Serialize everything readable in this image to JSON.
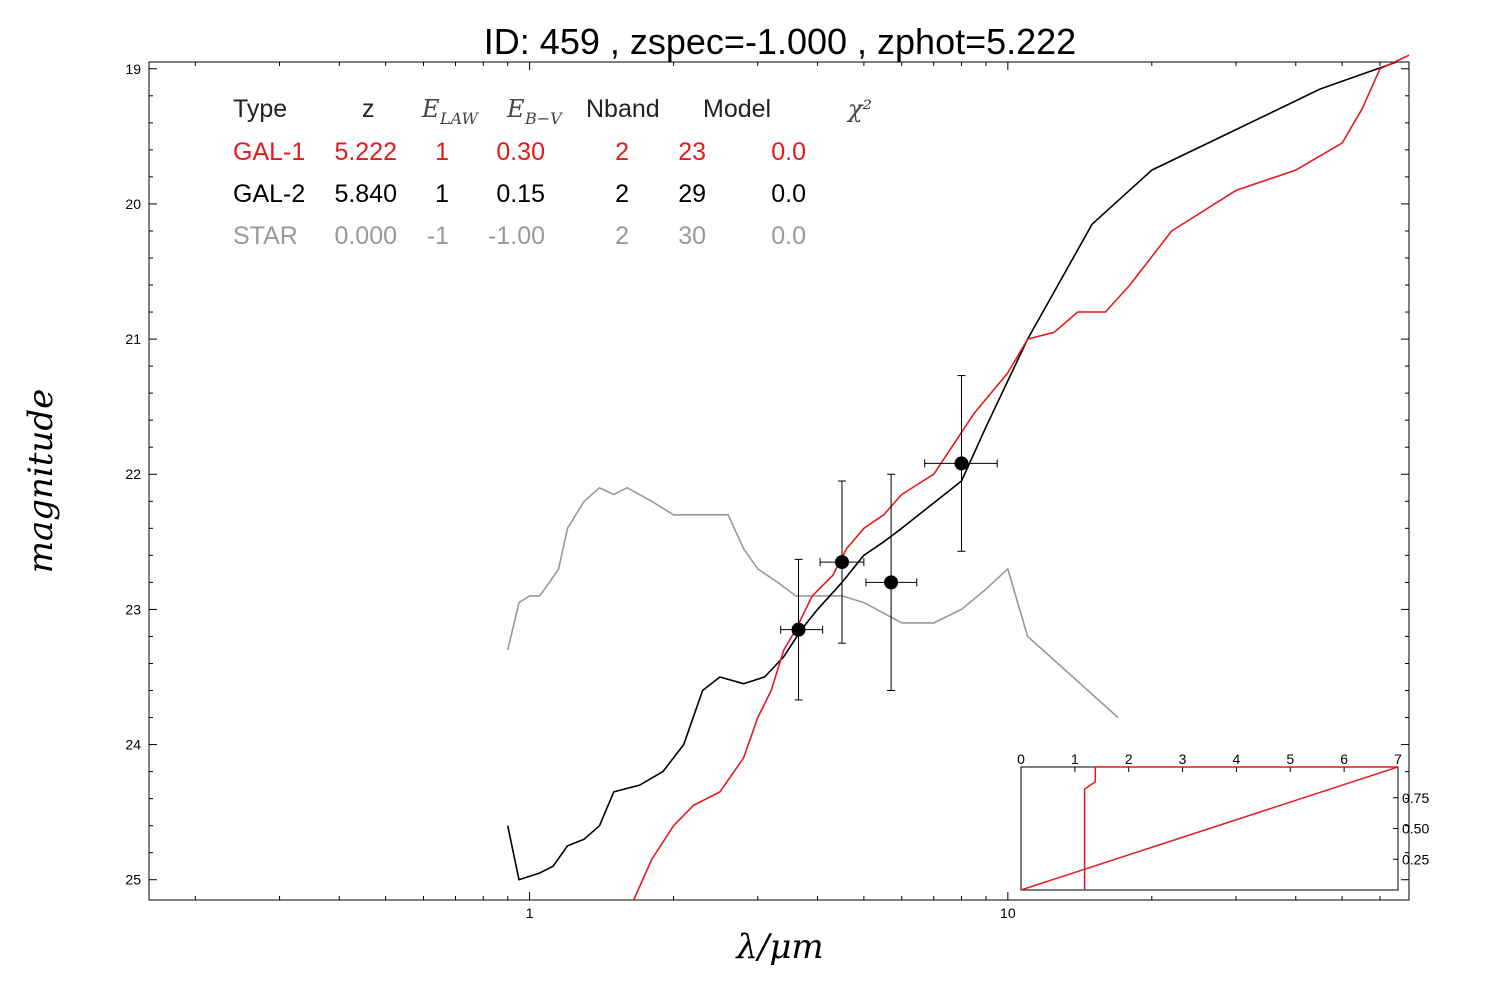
{
  "title": "ID:  459   , zspec=-1.000 , zphot=5.222",
  "colors": {
    "gal1": "#e41a1c",
    "gal2": "#000000",
    "star": "#999999",
    "axis": "#000000"
  },
  "table": {
    "headers": {
      "type": "Type",
      "z": "z",
      "elaw": "E",
      "elaw_sub": "LAW",
      "ebv": "E",
      "ebv_sub": "B−V",
      "nband": "Nband",
      "model": "Model",
      "chi2": "χ²"
    },
    "rows": [
      {
        "type": "GAL-1",
        "z": "5.222",
        "elaw": "1",
        "ebv": "0.30",
        "nband": "2",
        "model": "23",
        "chi2": "0.0",
        "color": "#e41a1c"
      },
      {
        "type": "GAL-2",
        "z": "5.840",
        "elaw": "1",
        "ebv": "0.15",
        "nband": "2",
        "model": "29",
        "chi2": "0.0",
        "color": "#000000"
      },
      {
        "type": "STAR",
        "z": "0.000",
        "elaw": "-1",
        "ebv": "-1.00",
        "nband": "2",
        "model": "30",
        "chi2": "0.0",
        "color": "#999999"
      }
    ]
  },
  "chart_data": {
    "type": "line",
    "title": "ID:  459   , zspec=-1.000 , zphot=5.222",
    "xlabel": "λ/μm",
    "ylabel": "magnitude",
    "xscale": "log",
    "xlim": [
      0.16,
      69
    ],
    "ylim": [
      25.15,
      18.95
    ],
    "x_ticks": [
      1,
      10
    ],
    "y_ticks": [
      19,
      20,
      21,
      22,
      23,
      24,
      25
    ],
    "grid": false,
    "legend": "table top-left",
    "series": [
      {
        "name": "GAL-1",
        "color": "#e41a1c",
        "points": [
          [
            1.65,
            25.15
          ],
          [
            1.8,
            24.85
          ],
          [
            2.0,
            24.6
          ],
          [
            2.2,
            24.45
          ],
          [
            2.5,
            24.35
          ],
          [
            2.8,
            24.1
          ],
          [
            3.0,
            23.8
          ],
          [
            3.2,
            23.6
          ],
          [
            3.4,
            23.3
          ],
          [
            3.6,
            23.15
          ],
          [
            3.9,
            22.9
          ],
          [
            4.3,
            22.75
          ],
          [
            4.6,
            22.55
          ],
          [
            5.0,
            22.4
          ],
          [
            5.5,
            22.3
          ],
          [
            6.0,
            22.15
          ],
          [
            7.0,
            22.0
          ],
          [
            8.5,
            21.55
          ],
          [
            10.0,
            21.25
          ],
          [
            11.0,
            21.0
          ],
          [
            12.5,
            20.95
          ],
          [
            14.0,
            20.8
          ],
          [
            16.0,
            20.8
          ],
          [
            18.0,
            20.6
          ],
          [
            22.0,
            20.2
          ],
          [
            30.0,
            19.9
          ],
          [
            40.0,
            19.75
          ],
          [
            50.0,
            19.55
          ],
          [
            55.0,
            19.3
          ],
          [
            60.0,
            19.0
          ],
          [
            69.0,
            18.9
          ]
        ]
      },
      {
        "name": "GAL-2",
        "color": "#000000",
        "points": [
          [
            0.9,
            24.6
          ],
          [
            0.95,
            25.0
          ],
          [
            1.05,
            24.95
          ],
          [
            1.12,
            24.9
          ],
          [
            1.2,
            24.75
          ],
          [
            1.3,
            24.7
          ],
          [
            1.4,
            24.6
          ],
          [
            1.5,
            24.35
          ],
          [
            1.7,
            24.3
          ],
          [
            1.9,
            24.2
          ],
          [
            2.1,
            24.0
          ],
          [
            2.3,
            23.6
          ],
          [
            2.5,
            23.5
          ],
          [
            2.8,
            23.55
          ],
          [
            3.1,
            23.5
          ],
          [
            3.4,
            23.35
          ],
          [
            3.7,
            23.15
          ],
          [
            4.0,
            23.0
          ],
          [
            4.5,
            22.8
          ],
          [
            5.0,
            22.6
          ],
          [
            5.5,
            22.5
          ],
          [
            6.0,
            22.4
          ],
          [
            8.0,
            22.05
          ],
          [
            9.0,
            21.65
          ],
          [
            11.0,
            21.0
          ],
          [
            15.0,
            20.15
          ],
          [
            20.0,
            19.75
          ],
          [
            30.0,
            19.45
          ],
          [
            45.0,
            19.15
          ],
          [
            65.0,
            18.95
          ]
        ]
      },
      {
        "name": "STAR",
        "color": "#999999",
        "points": [
          [
            0.9,
            23.3
          ],
          [
            0.95,
            22.95
          ],
          [
            1.0,
            22.9
          ],
          [
            1.05,
            22.9
          ],
          [
            1.1,
            22.8
          ],
          [
            1.15,
            22.7
          ],
          [
            1.2,
            22.4
          ],
          [
            1.3,
            22.2
          ],
          [
            1.4,
            22.1
          ],
          [
            1.5,
            22.15
          ],
          [
            1.6,
            22.1
          ],
          [
            1.8,
            22.2
          ],
          [
            2.0,
            22.3
          ],
          [
            2.2,
            22.3
          ],
          [
            2.4,
            22.3
          ],
          [
            2.6,
            22.3
          ],
          [
            2.8,
            22.55
          ],
          [
            3.0,
            22.7
          ],
          [
            3.3,
            22.8
          ],
          [
            3.6,
            22.9
          ],
          [
            4.0,
            22.9
          ],
          [
            4.5,
            22.9
          ],
          [
            5.0,
            22.95
          ],
          [
            6.0,
            23.1
          ],
          [
            7.0,
            23.1
          ],
          [
            8.0,
            23.0
          ],
          [
            9.0,
            22.85
          ],
          [
            10.0,
            22.7
          ],
          [
            11.0,
            23.2
          ],
          [
            17.0,
            23.8
          ]
        ]
      }
    ],
    "photometry": {
      "color": "#000000",
      "points": [
        {
          "x": 3.65,
          "y": 23.15,
          "x_lo": 3.35,
          "x_hi": 4.1,
          "y_err": 0.52
        },
        {
          "x": 4.5,
          "y": 22.65,
          "x_lo": 4.05,
          "x_hi": 5.0,
          "y_err": 0.6
        },
        {
          "x": 5.7,
          "y": 22.8,
          "x_lo": 5.05,
          "x_hi": 6.45,
          "y_err": 0.8
        },
        {
          "x": 8.0,
          "y": 21.92,
          "x_lo": 6.7,
          "x_hi": 9.5,
          "y_err": 0.65
        }
      ]
    },
    "inset": {
      "type": "line",
      "xlim": [
        0,
        7
      ],
      "ylim": [
        0,
        1
      ],
      "x_ticks": [
        0,
        1,
        2,
        3,
        4,
        5,
        6,
        7
      ],
      "y_ticks": [
        0.25,
        0.5,
        0.75
      ],
      "y_tick_labels": [
        "0.25",
        "0.50",
        "0.75"
      ],
      "series": [
        {
          "color": "#e41a1c",
          "points": [
            [
              0,
              0
            ],
            [
              7,
              1
            ]
          ]
        },
        {
          "color": "#e41a1c",
          "points": [
            [
              1.18,
              0
            ],
            [
              1.18,
              0.82
            ],
            [
              1.38,
              0.88
            ],
            [
              1.38,
              1.0
            ],
            [
              7.0,
              1.0
            ]
          ]
        }
      ]
    }
  }
}
